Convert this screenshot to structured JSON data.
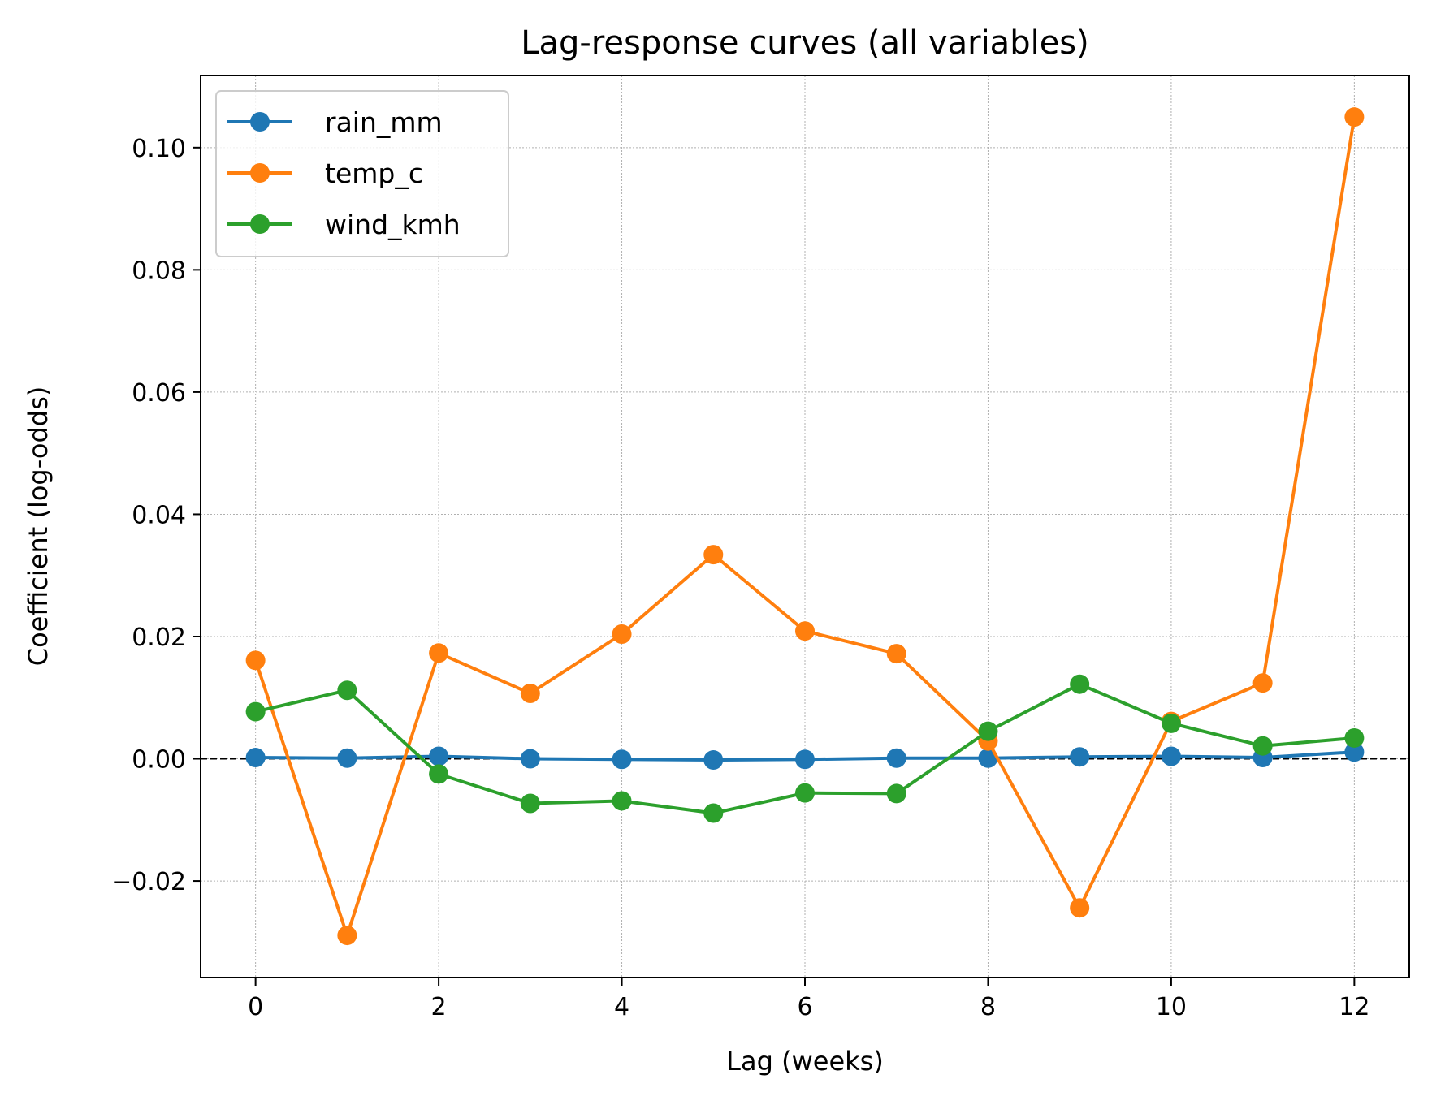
{
  "chart_data": {
    "type": "line",
    "title": "Lag-response curves (all variables)",
    "xlabel": "Lag (weeks)",
    "ylabel": "Coefficient (log-odds)",
    "x": [
      0,
      1,
      2,
      3,
      4,
      5,
      6,
      7,
      8,
      9,
      10,
      11,
      12
    ],
    "xlim": [
      -0.6,
      12.6
    ],
    "ylim": [
      -0.0358,
      0.1118
    ],
    "xticks": [
      0,
      2,
      4,
      6,
      8,
      10,
      12
    ],
    "xtick_labels": [
      "0",
      "2",
      "4",
      "6",
      "8",
      "10",
      "12"
    ],
    "yticks": [
      -0.02,
      0.0,
      0.02,
      0.04,
      0.06,
      0.08,
      0.1
    ],
    "ytick_labels": [
      "−0.02",
      "0.00",
      "0.02",
      "0.04",
      "0.06",
      "0.08",
      "0.10"
    ],
    "grid": true,
    "legend_position": "top-left",
    "reference_line": {
      "y": 0,
      "style": "dashed",
      "color": "#000000"
    },
    "series": [
      {
        "name": "rain_mm",
        "color": "#1f77b4",
        "values": [
          0.0002,
          0.0001,
          0.0004,
          0.0,
          -0.0001,
          -0.0002,
          -0.0001,
          0.0001,
          0.0001,
          0.0003,
          0.0004,
          0.0002,
          0.0011
        ]
      },
      {
        "name": "temp_c",
        "color": "#ff7f0e",
        "values": [
          0.0161,
          -0.0289,
          0.0173,
          0.0107,
          0.0204,
          0.0334,
          0.0209,
          0.0172,
          0.0029,
          -0.0244,
          0.0061,
          0.0124,
          0.105
        ]
      },
      {
        "name": "wind_kmh",
        "color": "#2ca02c",
        "values": [
          0.0077,
          0.0112,
          -0.0025,
          -0.0073,
          -0.0069,
          -0.0089,
          -0.0056,
          -0.0057,
          0.0045,
          0.0122,
          0.0058,
          0.0021,
          0.0034
        ]
      }
    ]
  }
}
